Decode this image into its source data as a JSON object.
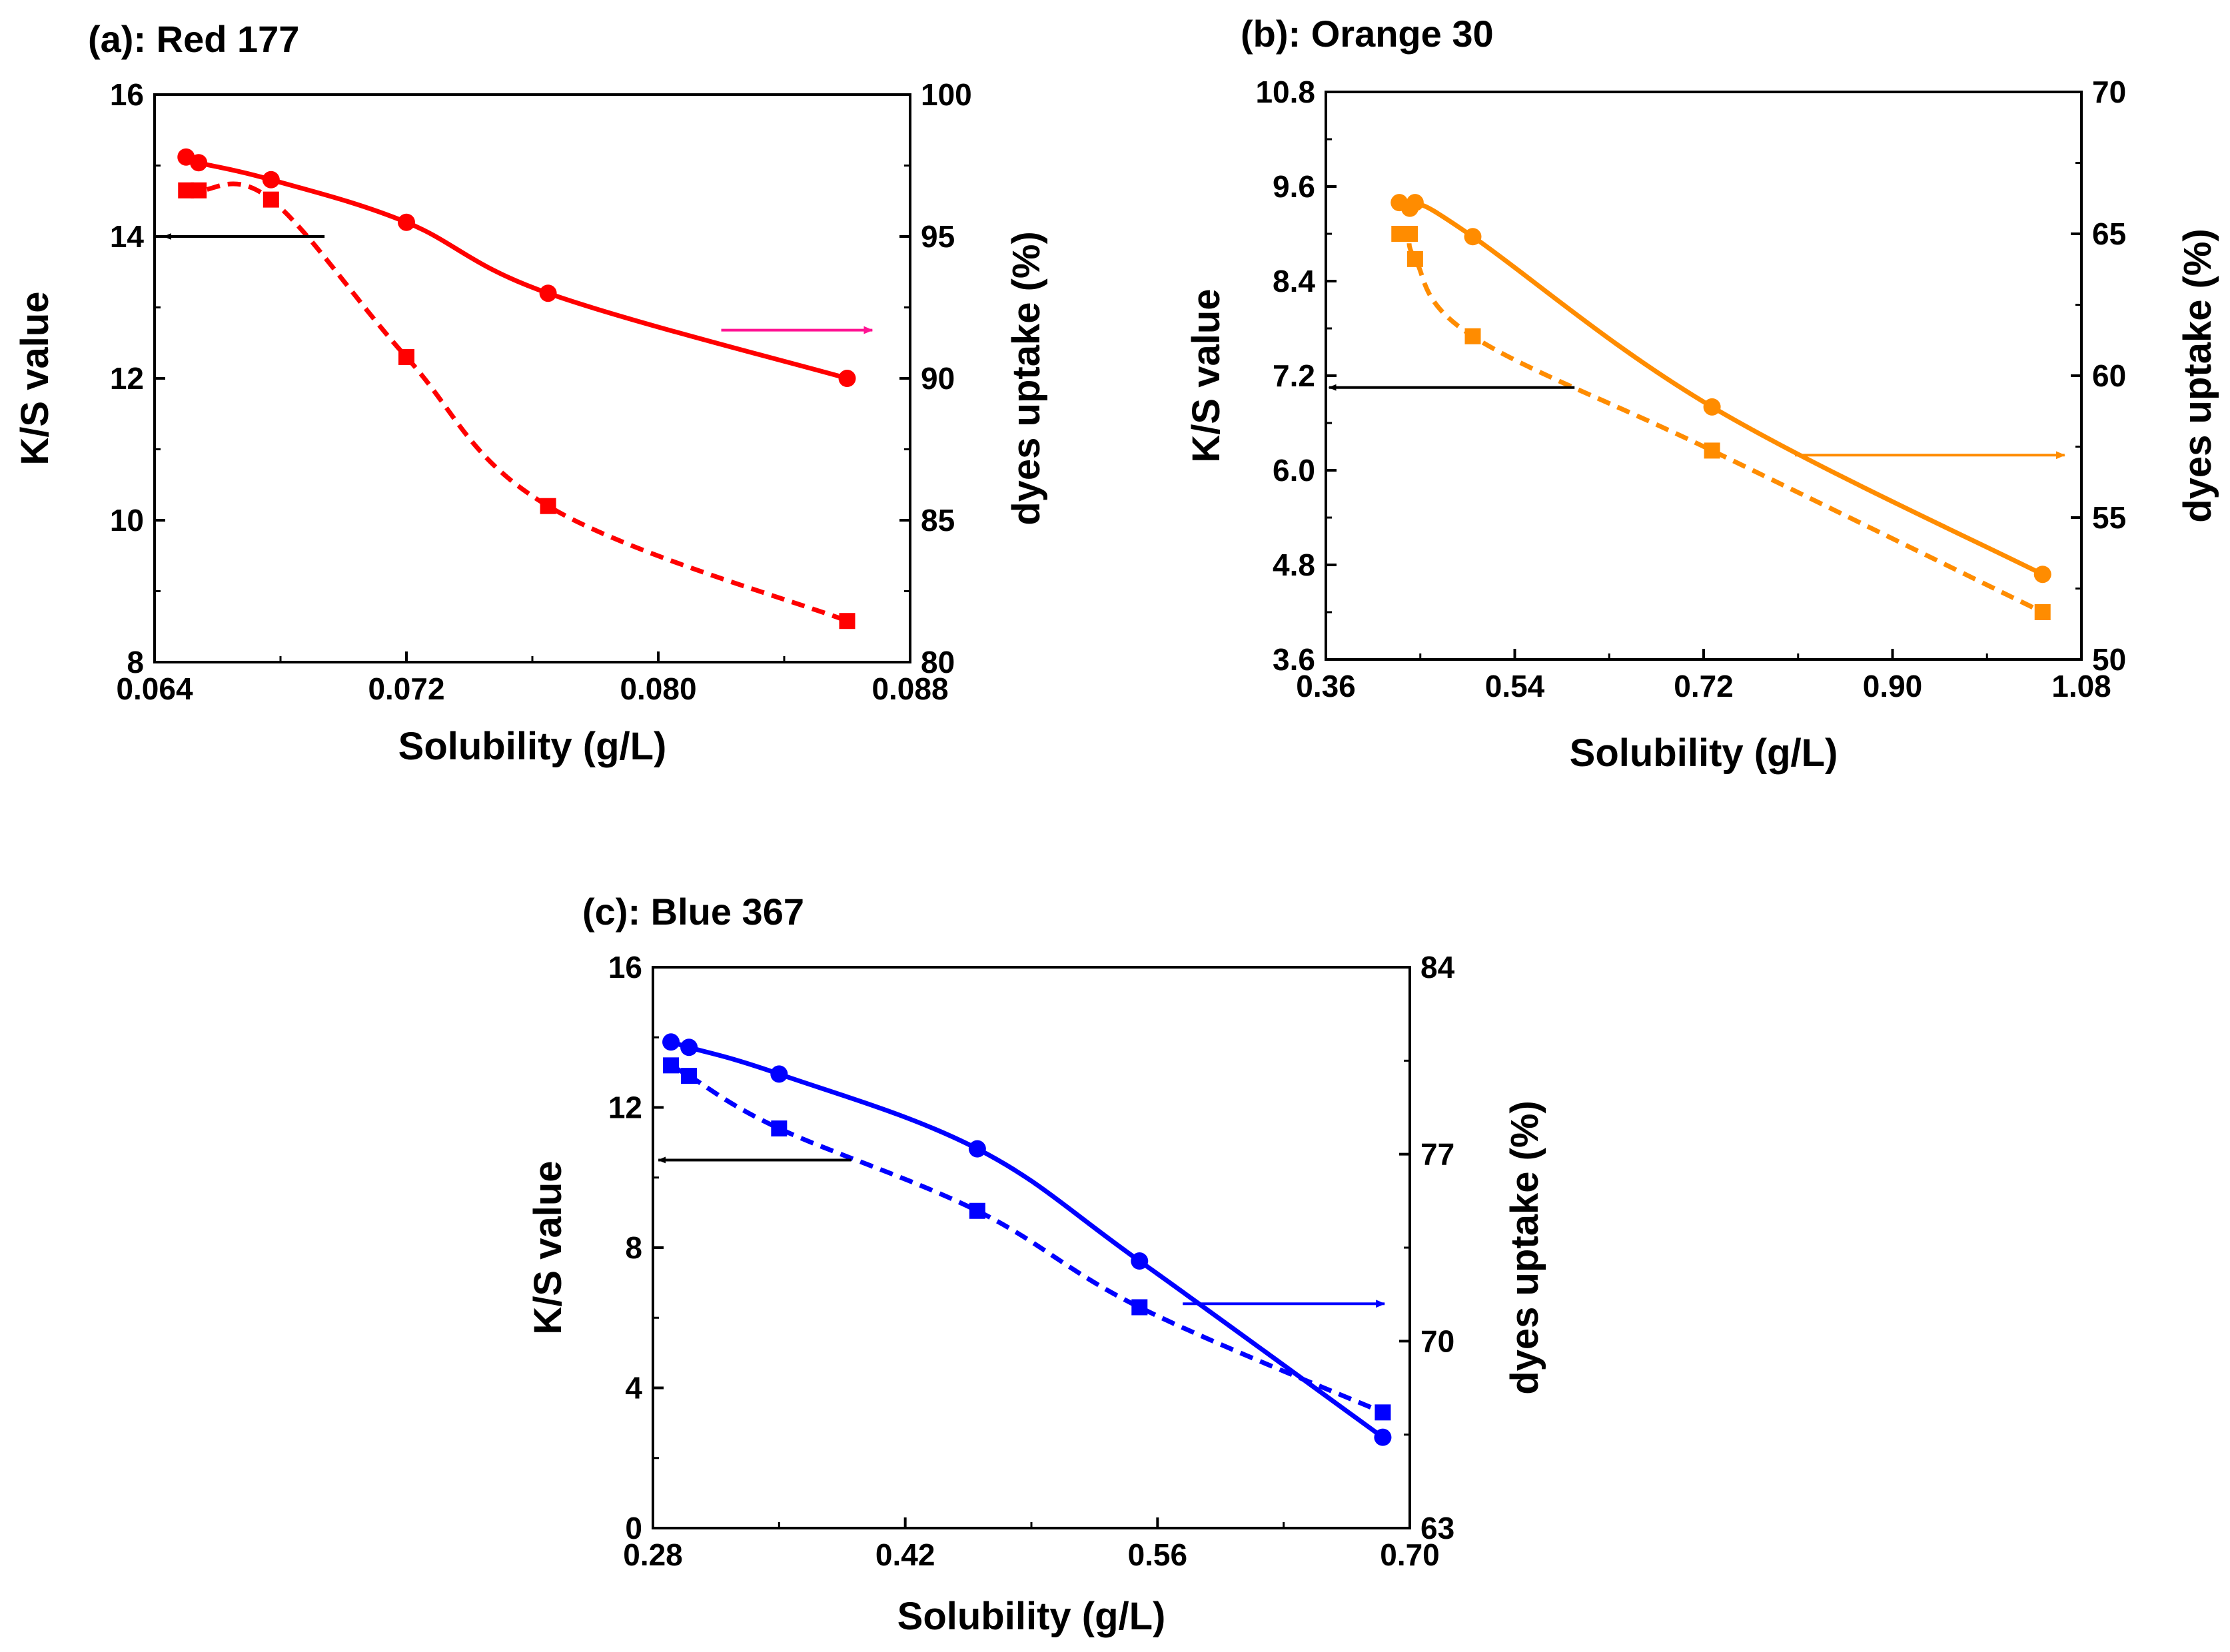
{
  "chart_data": [
    {
      "type": "line",
      "panel": "a",
      "title": "(a): Red 177",
      "xlabel": "Solubility (g/L)",
      "ylabel": "K/S value",
      "y2label": "dyes uptake (%)",
      "xlim": [
        0.064,
        0.088
      ],
      "xticks": [
        "0.064",
        "0.072",
        "0.080",
        "0.088"
      ],
      "ylim": [
        8,
        16
      ],
      "yticks": [
        "8",
        "10",
        "12",
        "14",
        "16"
      ],
      "y2lim": [
        80,
        100
      ],
      "y2ticks": [
        "80",
        "85",
        "90",
        "95",
        "100"
      ],
      "color": "#FF0000",
      "arrow_color_y2": "#FF1493",
      "series": [
        {
          "name": "K/S value",
          "axis": "left",
          "marker": "square",
          "line": "dashed",
          "x": [
            0.065,
            0.0654,
            0.0677,
            0.072,
            0.0765,
            0.086
          ],
          "y": [
            14.65,
            14.65,
            14.52,
            12.3,
            10.2,
            8.58
          ]
        },
        {
          "name": "dyes uptake",
          "axis": "right",
          "marker": "circle",
          "line": "solid",
          "x": [
            0.065,
            0.0654,
            0.0677,
            0.072,
            0.0765,
            0.086
          ],
          "y": [
            97.8,
            97.6,
            97.0,
            95.5,
            93.0,
            90.0
          ]
        }
      ],
      "arrows": [
        {
          "axis": "left",
          "from": [
            0.0694,
            14.0
          ],
          "to": [
            0.0643,
            14.0
          ]
        },
        {
          "axis": "right",
          "from": [
            0.082,
            91.7
          ],
          "to": [
            0.0868,
            91.7
          ]
        }
      ]
    },
    {
      "type": "line",
      "panel": "b",
      "title": "(b): Orange 30",
      "xlabel": "Solubility (g/L)",
      "ylabel": "K/S value",
      "y2label": "dyes uptake (%)",
      "xlim": [
        0.36,
        1.08
      ],
      "xticks": [
        "0.36",
        "0.54",
        "0.72",
        "0.90",
        "1.08"
      ],
      "ylim": [
        3.6,
        10.8
      ],
      "yticks": [
        "3.6",
        "4.8",
        "6.0",
        "7.2",
        "8.4",
        "9.6",
        "10.8"
      ],
      "y2lim": [
        50,
        70
      ],
      "y2ticks": [
        "50",
        "55",
        "60",
        "65",
        "70"
      ],
      "color": "#FF8C00",
      "arrow_color_y2": "#FF8C00",
      "series": [
        {
          "name": "K/S value",
          "axis": "left",
          "marker": "square",
          "line": "dashed",
          "x": [
            0.43,
            0.44,
            0.445,
            0.5,
            0.728,
            1.043
          ],
          "y": [
            9.0,
            9.0,
            8.68,
            7.7,
            6.25,
            4.2
          ]
        },
        {
          "name": "dyes uptake",
          "axis": "right",
          "marker": "circle",
          "line": "solid",
          "x": [
            0.43,
            0.44,
            0.445,
            0.5,
            0.728,
            1.043
          ],
          "y": [
            66.1,
            65.9,
            66.1,
            64.9,
            58.9,
            53.0
          ]
        }
      ],
      "arrows": [
        {
          "axis": "left",
          "from": [
            0.597,
            7.05
          ],
          "to": [
            0.363,
            7.05
          ]
        },
        {
          "axis": "right",
          "from": [
            0.807,
            57.2
          ],
          "to": [
            1.064,
            57.2
          ]
        }
      ]
    },
    {
      "type": "line",
      "panel": "c",
      "title": "(c): Blue 367",
      "xlabel": "Solubility (g/L)",
      "ylabel": "K/S value",
      "y2label": "dyes uptake (%)",
      "xlim": [
        0.28,
        0.7
      ],
      "xticks": [
        "0.28",
        "0.42",
        "0.56",
        "0.70"
      ],
      "ylim": [
        0,
        16
      ],
      "yticks": [
        "0",
        "4",
        "8",
        "12",
        "16"
      ],
      "y2lim": [
        63,
        84
      ],
      "y2ticks": [
        "63",
        "70",
        "77",
        "84"
      ],
      "color": "#0000FF",
      "arrow_color_y2": "#0000FF",
      "series": [
        {
          "name": "K/S value",
          "axis": "left",
          "marker": "square",
          "line": "dashed",
          "x": [
            0.29,
            0.3,
            0.35,
            0.46,
            0.55,
            0.685
          ],
          "y": [
            13.2,
            12.9,
            11.4,
            9.05,
            6.3,
            3.3
          ]
        },
        {
          "name": "dyes uptake",
          "axis": "right",
          "marker": "circle",
          "line": "solid",
          "x": [
            0.29,
            0.3,
            0.35,
            0.46,
            0.55,
            0.685
          ],
          "y": [
            81.2,
            81.0,
            80.0,
            77.2,
            73.0,
            66.4
          ]
        }
      ],
      "arrows": [
        {
          "axis": "left",
          "from": [
            0.39,
            10.5
          ],
          "to": [
            0.283,
            10.5
          ]
        },
        {
          "axis": "right",
          "from": [
            0.574,
            71.4
          ],
          "to": [
            0.686,
            71.4
          ]
        }
      ]
    }
  ]
}
